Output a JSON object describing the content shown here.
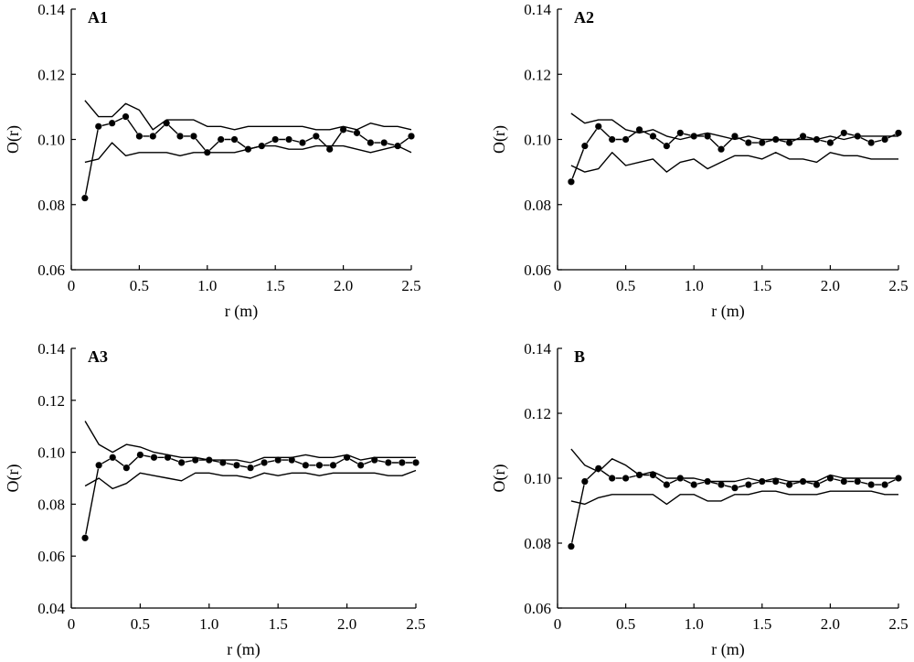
{
  "figure": {
    "colors": {
      "ink": "#000000",
      "background": "#ffffff"
    }
  },
  "chart_data": [
    {
      "type": "line",
      "title": "A1",
      "xlabel": "r (m)",
      "ylabel": "O(r)",
      "xlim": [
        0,
        2.5
      ],
      "ylim": [
        0.06,
        0.14
      ],
      "xticks": [
        "0",
        "0.5",
        "1.0",
        "1.5",
        "2.0",
        "2.5"
      ],
      "xtick_values": [
        0,
        0.5,
        1.0,
        1.5,
        2.0,
        2.5
      ],
      "yticks": [
        "0.06",
        "0.08",
        "0.10",
        "0.12",
        "0.14"
      ],
      "ytick_values": [
        0.06,
        0.08,
        0.1,
        0.12,
        0.14
      ],
      "grid": false,
      "x": [
        0.1,
        0.2,
        0.3,
        0.4,
        0.5,
        0.6,
        0.7,
        0.8,
        0.9,
        1.0,
        1.1,
        1.2,
        1.3,
        1.4,
        1.5,
        1.6,
        1.7,
        1.8,
        1.9,
        2.0,
        2.1,
        2.2,
        2.3,
        2.4,
        2.5
      ],
      "series": [
        {
          "style": "line-markers",
          "values": [
            0.082,
            0.104,
            0.105,
            0.107,
            0.101,
            0.101,
            0.105,
            0.101,
            0.101,
            0.096,
            0.1,
            0.1,
            0.097,
            0.098,
            0.1,
            0.1,
            0.099,
            0.101,
            0.097,
            0.103,
            0.102,
            0.099,
            0.099,
            0.098,
            0.101
          ]
        },
        {
          "style": "line",
          "values": [
            0.112,
            0.107,
            0.107,
            0.111,
            0.109,
            0.103,
            0.106,
            0.106,
            0.106,
            0.104,
            0.104,
            0.103,
            0.104,
            0.104,
            0.104,
            0.104,
            0.104,
            0.103,
            0.103,
            0.104,
            0.103,
            0.105,
            0.104,
            0.104,
            0.103
          ]
        },
        {
          "style": "line",
          "values": [
            0.093,
            0.094,
            0.099,
            0.095,
            0.096,
            0.096,
            0.096,
            0.095,
            0.096,
            0.096,
            0.096,
            0.096,
            0.097,
            0.098,
            0.098,
            0.097,
            0.097,
            0.098,
            0.098,
            0.098,
            0.097,
            0.096,
            0.097,
            0.098,
            0.096
          ]
        }
      ]
    },
    {
      "type": "line",
      "title": "A2",
      "xlabel": "r (m)",
      "ylabel": "O(r)",
      "xlim": [
        0,
        2.5
      ],
      "ylim": [
        0.06,
        0.14
      ],
      "xticks": [
        "0",
        "0.5",
        "1.0",
        "1.5",
        "2.0",
        "2.5"
      ],
      "xtick_values": [
        0,
        0.5,
        1.0,
        1.5,
        2.0,
        2.5
      ],
      "yticks": [
        "0.06",
        "0.08",
        "0.10",
        "0.12",
        "0.14"
      ],
      "ytick_values": [
        0.06,
        0.08,
        0.1,
        0.12,
        0.14
      ],
      "grid": false,
      "x": [
        0.1,
        0.2,
        0.3,
        0.4,
        0.5,
        0.6,
        0.7,
        0.8,
        0.9,
        1.0,
        1.1,
        1.2,
        1.3,
        1.4,
        1.5,
        1.6,
        1.7,
        1.8,
        1.9,
        2.0,
        2.1,
        2.2,
        2.3,
        2.4,
        2.5
      ],
      "series": [
        {
          "style": "line-markers",
          "values": [
            0.087,
            0.098,
            0.104,
            0.1,
            0.1,
            0.103,
            0.101,
            0.098,
            0.102,
            0.101,
            0.101,
            0.097,
            0.101,
            0.099,
            0.099,
            0.1,
            0.099,
            0.101,
            0.1,
            0.099,
            0.102,
            0.101,
            0.099,
            0.1,
            0.102
          ]
        },
        {
          "style": "line",
          "values": [
            0.108,
            0.105,
            0.106,
            0.106,
            0.103,
            0.102,
            0.103,
            0.101,
            0.1,
            0.101,
            0.102,
            0.101,
            0.1,
            0.101,
            0.1,
            0.1,
            0.1,
            0.1,
            0.1,
            0.101,
            0.1,
            0.101,
            0.101,
            0.101,
            0.101
          ]
        },
        {
          "style": "line",
          "values": [
            0.092,
            0.09,
            0.091,
            0.096,
            0.092,
            0.093,
            0.094,
            0.09,
            0.093,
            0.094,
            0.091,
            0.093,
            0.095,
            0.095,
            0.094,
            0.096,
            0.094,
            0.094,
            0.093,
            0.096,
            0.095,
            0.095,
            0.094,
            0.094,
            0.094
          ]
        }
      ]
    },
    {
      "type": "line",
      "title": "A3",
      "xlabel": "r (m)",
      "ylabel": "O(r)",
      "xlim": [
        0,
        2.5
      ],
      "ylim": [
        0.04,
        0.14
      ],
      "xticks": [
        "0",
        "0.5",
        "1.0",
        "1.5",
        "2.0",
        "2.5"
      ],
      "xtick_values": [
        0,
        0.5,
        1.0,
        1.5,
        2.0,
        2.5
      ],
      "yticks": [
        "0.04",
        "0.06",
        "0.08",
        "0.10",
        "0.12",
        "0.14"
      ],
      "ytick_values": [
        0.04,
        0.06,
        0.08,
        0.1,
        0.12,
        0.14
      ],
      "grid": false,
      "x": [
        0.1,
        0.2,
        0.3,
        0.4,
        0.5,
        0.6,
        0.7,
        0.8,
        0.9,
        1.0,
        1.1,
        1.2,
        1.3,
        1.4,
        1.5,
        1.6,
        1.7,
        1.8,
        1.9,
        2.0,
        2.1,
        2.2,
        2.3,
        2.4,
        2.5
      ],
      "series": [
        {
          "style": "line-markers",
          "values": [
            0.067,
            0.095,
            0.098,
            0.094,
            0.099,
            0.098,
            0.098,
            0.096,
            0.097,
            0.097,
            0.096,
            0.095,
            0.094,
            0.096,
            0.097,
            0.097,
            0.095,
            0.095,
            0.095,
            0.098,
            0.095,
            0.097,
            0.096,
            0.096,
            0.096
          ]
        },
        {
          "style": "line",
          "values": [
            0.112,
            0.103,
            0.1,
            0.103,
            0.102,
            0.1,
            0.099,
            0.098,
            0.098,
            0.097,
            0.097,
            0.097,
            0.096,
            0.098,
            0.098,
            0.098,
            0.099,
            0.098,
            0.098,
            0.099,
            0.097,
            0.098,
            0.098,
            0.098,
            0.098
          ]
        },
        {
          "style": "line",
          "values": [
            0.087,
            0.09,
            0.086,
            0.088,
            0.092,
            0.091,
            0.09,
            0.089,
            0.092,
            0.092,
            0.091,
            0.091,
            0.09,
            0.092,
            0.091,
            0.092,
            0.092,
            0.091,
            0.092,
            0.092,
            0.092,
            0.092,
            0.091,
            0.091,
            0.093
          ]
        }
      ]
    },
    {
      "type": "line",
      "title": "B",
      "xlabel": "r (m)",
      "ylabel": "O(r)",
      "xlim": [
        0,
        2.5
      ],
      "ylim": [
        0.06,
        0.14
      ],
      "xticks": [
        "0",
        "0.5",
        "1.0",
        "1.5",
        "2.0",
        "2.5"
      ],
      "xtick_values": [
        0,
        0.5,
        1.0,
        1.5,
        2.0,
        2.5
      ],
      "yticks": [
        "0.06",
        "0.08",
        "0.10",
        "0.12",
        "0.14"
      ],
      "ytick_values": [
        0.06,
        0.08,
        0.1,
        0.12,
        0.14
      ],
      "grid": false,
      "x": [
        0.1,
        0.2,
        0.3,
        0.4,
        0.5,
        0.6,
        0.7,
        0.8,
        0.9,
        1.0,
        1.1,
        1.2,
        1.3,
        1.4,
        1.5,
        1.6,
        1.7,
        1.8,
        1.9,
        2.0,
        2.1,
        2.2,
        2.3,
        2.4,
        2.5
      ],
      "series": [
        {
          "style": "line-markers",
          "values": [
            0.079,
            0.099,
            0.103,
            0.1,
            0.1,
            0.101,
            0.101,
            0.098,
            0.1,
            0.098,
            0.099,
            0.098,
            0.097,
            0.098,
            0.099,
            0.099,
            0.098,
            0.099,
            0.098,
            0.1,
            0.099,
            0.099,
            0.098,
            0.098,
            0.1
          ]
        },
        {
          "style": "line",
          "values": [
            0.109,
            0.104,
            0.102,
            0.106,
            0.104,
            0.101,
            0.102,
            0.1,
            0.1,
            0.1,
            0.099,
            0.099,
            0.099,
            0.1,
            0.099,
            0.1,
            0.099,
            0.099,
            0.099,
            0.101,
            0.1,
            0.1,
            0.1,
            0.1,
            0.1
          ]
        },
        {
          "style": "line",
          "values": [
            0.093,
            0.092,
            0.094,
            0.095,
            0.095,
            0.095,
            0.095,
            0.092,
            0.095,
            0.095,
            0.093,
            0.093,
            0.095,
            0.095,
            0.096,
            0.096,
            0.095,
            0.095,
            0.095,
            0.096,
            0.096,
            0.096,
            0.096,
            0.095,
            0.095
          ]
        }
      ]
    }
  ]
}
